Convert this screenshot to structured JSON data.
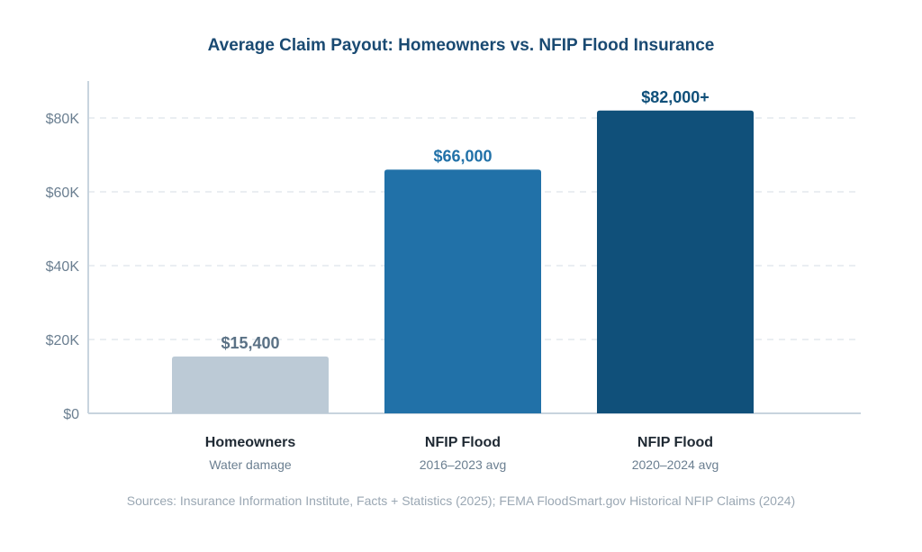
{
  "chart_data": {
    "type": "bar",
    "title": "Average Claim Payout: Homeowners vs. NFIP Flood Insurance",
    "xlabel": "",
    "ylabel": "",
    "ylim": [
      0,
      90000
    ],
    "yticks": [
      0,
      20000,
      40000,
      60000,
      80000
    ],
    "ytick_labels": [
      "$0",
      "$20K",
      "$40K",
      "$60K",
      "$80K"
    ],
    "grid": true,
    "categories": [
      {
        "label": "Homeowners",
        "sublabel": "Water damage",
        "value": 15400,
        "value_label": "$15,400",
        "color": "#bccad6",
        "label_color": "#5a7185"
      },
      {
        "label": "NFIP Flood",
        "sublabel": "2016–2023 avg",
        "value": 66000,
        "value_label": "$66,000",
        "color": "#2171a8",
        "label_color": "#2171a8"
      },
      {
        "label": "NFIP Flood",
        "sublabel": "2020–2024 avg",
        "value": 82000,
        "value_label": "$82,000+",
        "color": "#10507a",
        "label_color": "#10507a"
      }
    ],
    "source": "Sources: Insurance Information Institute, Facts + Statistics (2025); FEMA FloodSmart.gov Historical NFIP Claims (2024)"
  },
  "colors": {
    "title": "#1a4a72",
    "axis": "#c8d4de",
    "grid": "#dde4ea",
    "tick_label": "#6b7f91",
    "category_label": "#1f2933",
    "sublabel": "#6b7f91",
    "source": "#9aa7b3"
  }
}
